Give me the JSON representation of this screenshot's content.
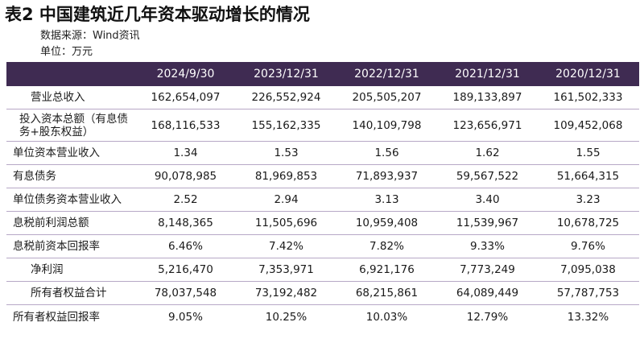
{
  "title": "表2 中国建筑近几年资本驱动增长的情况",
  "source": "数据来源：Wind资讯",
  "unit": "单位：万元",
  "columns": [
    "2024/9/30",
    "2023/12/31",
    "2022/12/31",
    "2021/12/31",
    "2020/12/31"
  ],
  "rows": [
    {
      "label": "营业总收入",
      "values": [
        "162,654,097",
        "226,552,924",
        "205,505,207",
        "189,133,897",
        "161,502,333"
      ]
    },
    {
      "label": "投入资本总额（有息债务+股东权益）",
      "values": [
        "168,116,533",
        "155,162,335",
        "140,109,798",
        "123,656,971",
        "109,452,068"
      ]
    },
    {
      "label": "单位资本营业收入",
      "values": [
        "1.34",
        "1.53",
        "1.56",
        "1.62",
        "1.55"
      ]
    },
    {
      "label": "有息债务",
      "values": [
        "90,078,985",
        "81,969,853",
        "71,893,937",
        "59,567,522",
        "51,664,315"
      ]
    },
    {
      "label": "单位债务资本营业收入",
      "values": [
        "2.52",
        "2.94",
        "3.13",
        "3.40",
        "3.23"
      ]
    },
    {
      "label": "息税前利润总额",
      "values": [
        "8,148,365",
        "11,505,696",
        "10,959,408",
        "11,539,967",
        "10,678,725"
      ]
    },
    {
      "label": "息税前资本回报率",
      "values": [
        "6.46%",
        "7.42%",
        "7.82%",
        "9.33%",
        "9.76%"
      ]
    },
    {
      "label": "净利润",
      "values": [
        "5,216,470",
        "7,353,971",
        "6,921,176",
        "7,773,249",
        "7,095,038"
      ]
    },
    {
      "label": "所有者权益合计",
      "values": [
        "78,037,548",
        "73,192,482",
        "68,215,861",
        "64,089,449",
        "57,787,753"
      ]
    },
    {
      "label": "所有者权益回报率",
      "values": [
        "9.05%",
        "10.25%",
        "10.03%",
        "12.79%",
        "13.32%"
      ]
    }
  ]
}
